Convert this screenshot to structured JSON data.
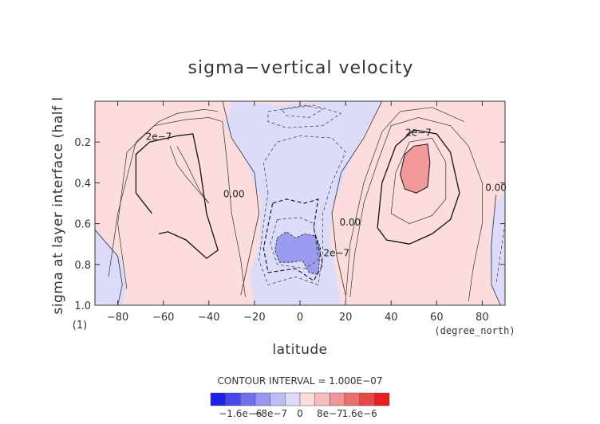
{
  "chart_data": {
    "type": "heatmap",
    "title": "sigma−vertical velocity",
    "xlabel": "latitude",
    "ylabel": "sigma at layer interface (half l",
    "x_units": "(degree_north)",
    "y_units": "(1)",
    "xlim": [
      -90,
      90
    ],
    "ylim": [
      1.0,
      0.0
    ],
    "x_ticks": [
      -80,
      -60,
      -40,
      -20,
      0,
      20,
      40,
      60,
      80
    ],
    "x_tick_labels": [
      "−80",
      "−60",
      "−40",
      "−20",
      "0",
      "20",
      "40",
      "60",
      "80"
    ],
    "y_ticks": [
      0.2,
      0.4,
      0.6,
      0.8,
      1.0
    ],
    "y_tick_labels": [
      "0.2",
      "0.4",
      "0.6",
      "0.8",
      "1.0"
    ],
    "contour_interval_text": "CONTOUR INTERVAL = 1.000E−07",
    "contour_labels": [
      {
        "text": "2e−7",
        "x": -62,
        "y": 0.19
      },
      {
        "text": "2e−7",
        "x": 52,
        "y": 0.17
      },
      {
        "text": "0.00",
        "x": -29,
        "y": 0.47
      },
      {
        "text": "0.00",
        "x": 22,
        "y": 0.61
      },
      {
        "text": "2e−7",
        "x": 16,
        "y": 0.76
      },
      {
        "text": "0.00",
        "x": 86,
        "y": 0.44
      }
    ],
    "colorbar": {
      "ticks": [
        -1.6e-06,
        -8e-07,
        0,
        8e-07,
        1.6e-06
      ],
      "tick_labels": [
        "−1.6e−6",
        "−8e−7",
        "0",
        "8e−7",
        "1.6e−6"
      ],
      "colors": [
        "#1f1fe8",
        "#4747ec",
        "#6f6ff0",
        "#9696f3",
        "#bdbdf6",
        "#dcdcfa",
        "#fbdcdc",
        "#f5bdbd",
        "#f09696",
        "#ec6f6f",
        "#e84747",
        "#e81f1f"
      ]
    },
    "fill_colors": {
      "negative_weak": "#dcdcfa",
      "negative_strong": "#9b9bef",
      "positive_weak": "#fcdcdc",
      "positive_strong": "#f29a9a"
    },
    "regions": [
      {
        "name": "southern positive cell",
        "sign": "positive",
        "x_range": [
          -90,
          -30
        ],
        "y_range": [
          0.0,
          1.0
        ]
      },
      {
        "name": "equatorial negative column",
        "sign": "negative",
        "x_range": [
          -25,
          25
        ],
        "y_range": [
          0.0,
          1.0
        ]
      },
      {
        "name": "equatorial strong downward core",
        "sign": "negative",
        "x_range": [
          -11,
          10
        ],
        "y_range": [
          0.64,
          0.86
        ],
        "level": "-8e-7"
      },
      {
        "name": "northern positive cell",
        "sign": "positive",
        "x_range": [
          25,
          85
        ],
        "y_range": [
          0.0,
          1.0
        ]
      },
      {
        "name": "northern strong upward core",
        "sign": "positive",
        "x_range": [
          44,
          57
        ],
        "y_range": [
          0.21,
          0.45
        ],
        "level": "8e-7"
      },
      {
        "name": "southern polar negative",
        "sign": "negative",
        "x_range": [
          -90,
          -72
        ],
        "y_range": [
          0.6,
          1.0
        ]
      },
      {
        "name": "northern polar negative",
        "sign": "negative",
        "x_range": [
          78,
          90
        ],
        "y_range": [
          0.45,
          1.0
        ]
      }
    ]
  }
}
